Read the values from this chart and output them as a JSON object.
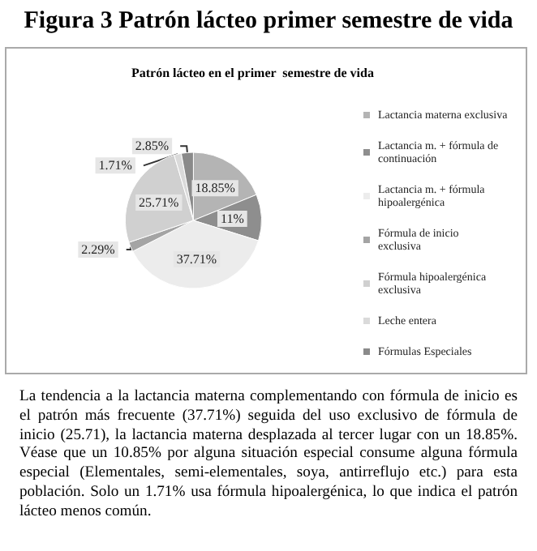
{
  "chart_data": {
    "type": "pie",
    "title": "Figura 3 Patrón lácteo primer semestre de vida",
    "subtitle": "Patrón lácteo en el primer  semestre de vida",
    "categories": [
      "Lactancia materna exclusiva",
      "Lactancia m. + fórmula de continuación",
      "Lactancia m. + fórmula hipoalergénica",
      "Fórmula de inicio exclusiva",
      "Fórmula hipoalergénica exclusiva",
      "Leche entera",
      "Fórmulas Especiales"
    ],
    "values": [
      18.85,
      11,
      37.71,
      2.29,
      25.71,
      1.71,
      2.85
    ],
    "colors": [
      "#b4b4b4",
      "#8e8e8e",
      "#ececec",
      "#a4a4a4",
      "#d0d0d0",
      "#dadada",
      "#8a8a8a"
    ],
    "value_labels": [
      "18.85%",
      "11%",
      "37.71%",
      "2.29%",
      "25.71%",
      "1.71%",
      "2.85%"
    ],
    "legend": "right",
    "annotations": [
      "La tendencia a la lactancia materna complementando con fórmula de inicio es el patrón más frecuente (37.71%) seguida del uso exclusivo de fórmula de inicio (25.71), la lactancia materna desplazada al tercer lugar con un 18.85%. Véase que un 10.85% por alguna situación especial consume alguna fórmula especial (Elementales, semi-elementales, soya, antirreflujo etc.) para esta población. Solo un 1.71% usa fórmula hipoalergénica, lo que indica el patrón lácteo menos común."
    ]
  }
}
